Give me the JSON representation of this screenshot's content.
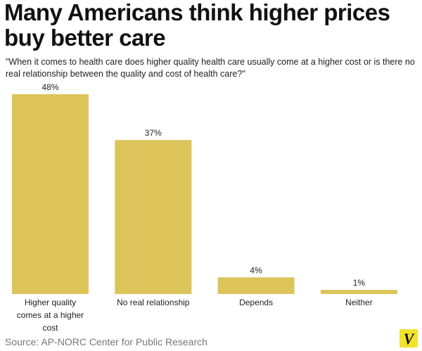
{
  "chart_data": {
    "type": "bar",
    "title": "Many Americans think higher prices buy better care",
    "subtitle": "\"When it comes to health care does higher quality health care usually come at a higher cost or is there no real relationship between the quality and cost of health care?\"",
    "categories": [
      "Higher quality comes at a higher cost",
      "No real relationship",
      "Depends",
      "Neither"
    ],
    "values": [
      48,
      37,
      4,
      1
    ],
    "value_labels": [
      "48%",
      "37%",
      "4%",
      "1%"
    ],
    "ylim": [
      0,
      48
    ],
    "xlabel": "",
    "ylabel": "",
    "grid": false,
    "bar_color": "#dcc45a"
  },
  "source": "Source: AP-NORC Center for Public Research",
  "logo": {
    "icon": "vox-v-logo",
    "text": "V",
    "color": "#f2e22a"
  }
}
